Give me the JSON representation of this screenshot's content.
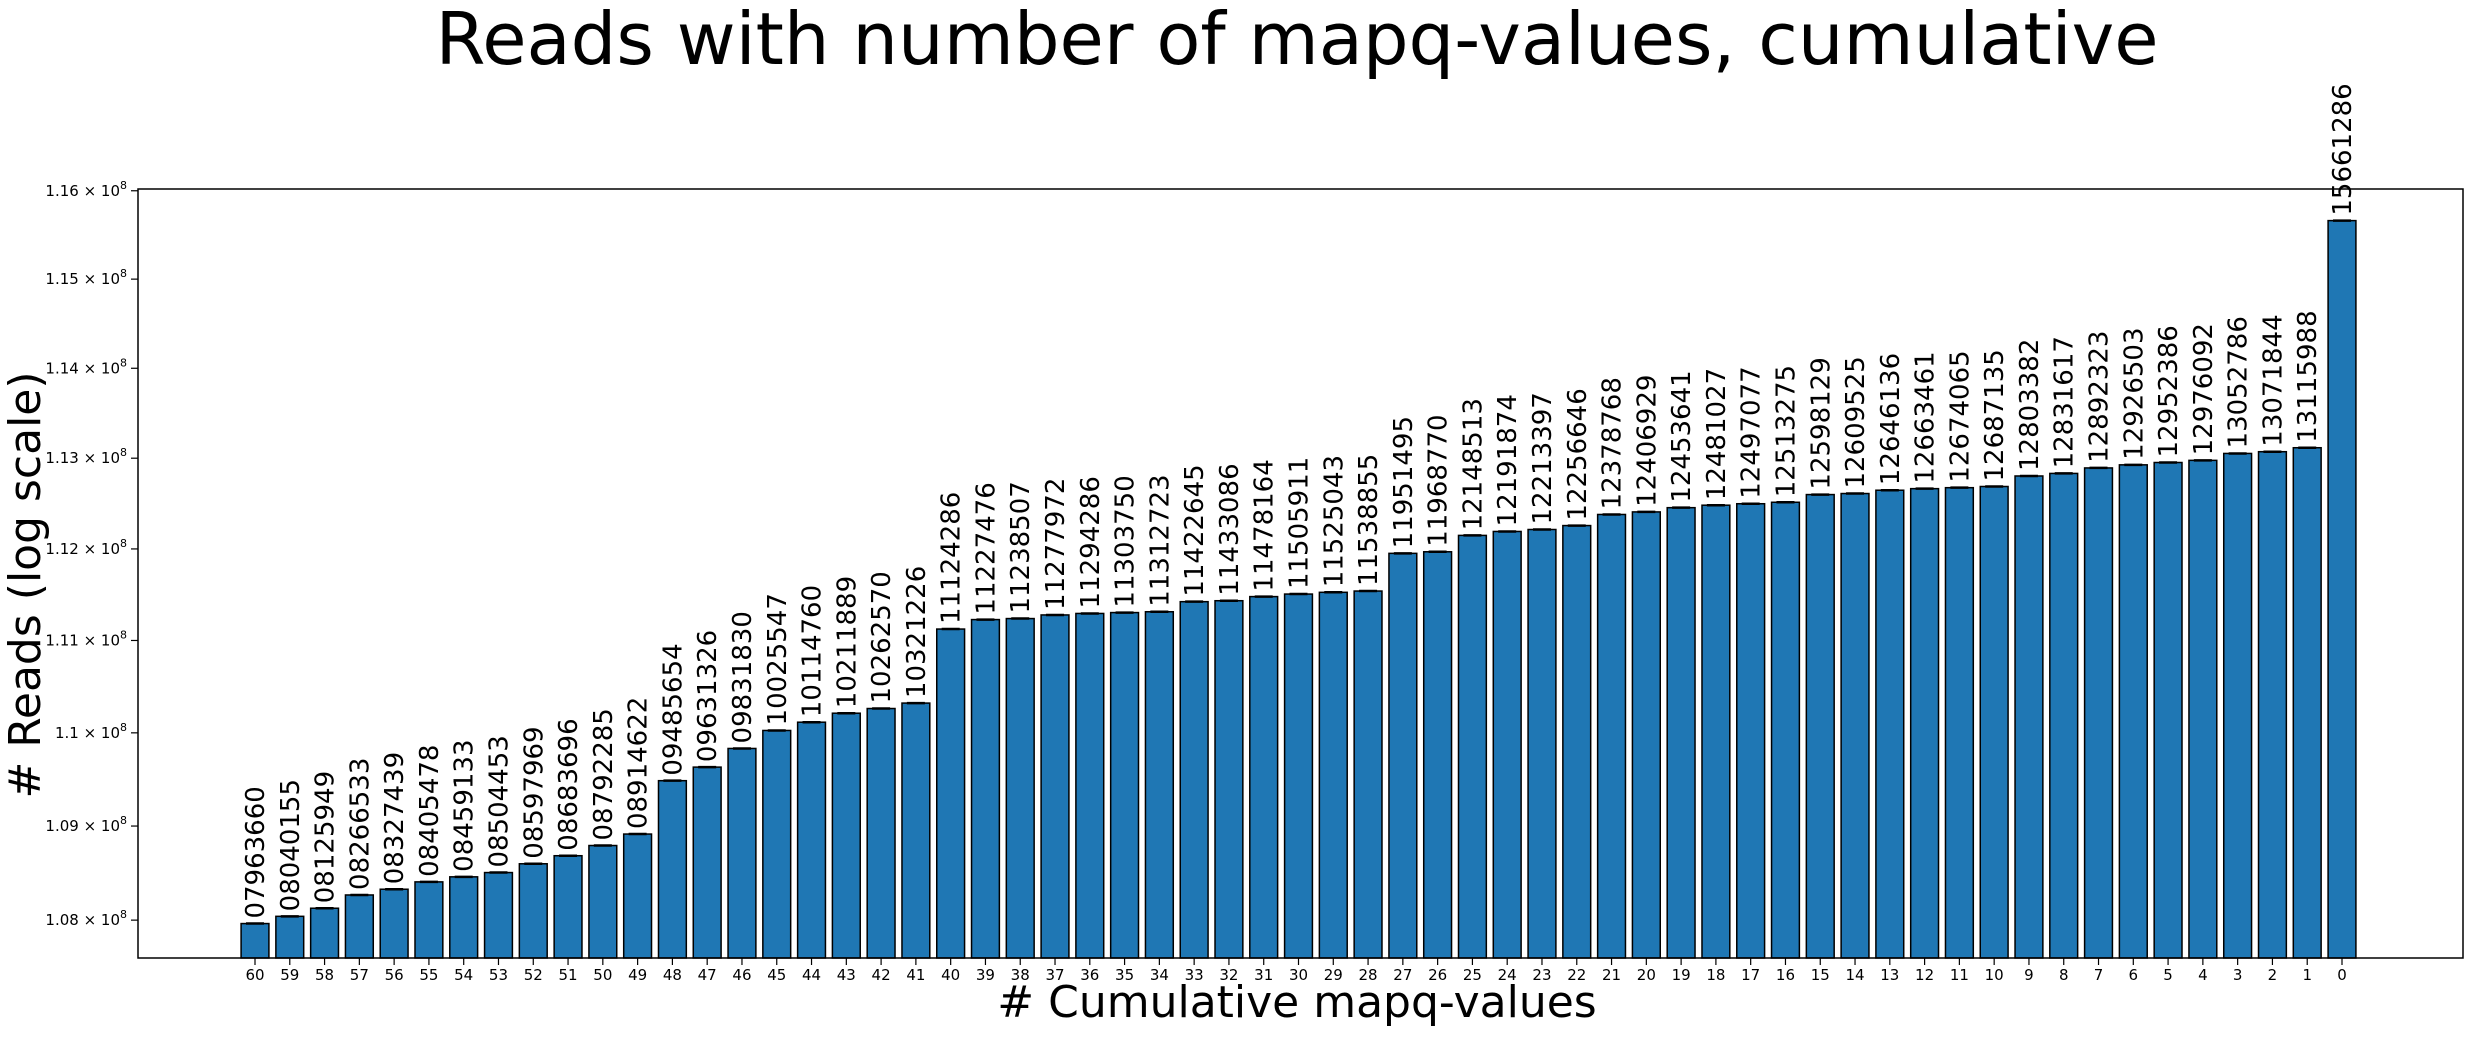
{
  "chart_data": {
    "type": "bar",
    "title": "Reads with number of mapq-values, cumulative",
    "xlabel": "# Cumulative mapq-values",
    "ylabel": "# Reads (log scale)",
    "yscale": "log",
    "ylim": [
      107600000,
      116020000
    ],
    "bar_color": "#1f77b4",
    "edge_color": "#000000",
    "grid": false,
    "legend": "none",
    "yticks": [
      108000000,
      109000000,
      110000000,
      111000000,
      112000000,
      113000000,
      114000000,
      115000000,
      116000000
    ],
    "ytick_labels": [
      {
        "mant": "1.08",
        "exp": "8"
      },
      {
        "mant": "1.09",
        "exp": "8"
      },
      {
        "mant": "1.1",
        "exp": "8"
      },
      {
        "mant": "1.11",
        "exp": "8"
      },
      {
        "mant": "1.12",
        "exp": "8"
      },
      {
        "mant": "1.13",
        "exp": "8"
      },
      {
        "mant": "1.14",
        "exp": "8"
      },
      {
        "mant": "1.15",
        "exp": "8"
      },
      {
        "mant": "1.16",
        "exp": "8"
      }
    ],
    "categories": [
      "60",
      "59",
      "58",
      "57",
      "56",
      "55",
      "54",
      "53",
      "52",
      "51",
      "50",
      "49",
      "48",
      "47",
      "46",
      "45",
      "44",
      "43",
      "42",
      "41",
      "40",
      "39",
      "38",
      "37",
      "36",
      "35",
      "34",
      "33",
      "32",
      "31",
      "30",
      "29",
      "28",
      "27",
      "26",
      "25",
      "24",
      "23",
      "22",
      "21",
      "20",
      "19",
      "18",
      "17",
      "16",
      "15",
      "14",
      "13",
      "12",
      "11",
      "10",
      "9",
      "8",
      "7",
      "6",
      "5",
      "4",
      "3",
      "2",
      "1",
      "0"
    ],
    "values": [
      107963660,
      108040155,
      108125949,
      108266533,
      108327439,
      108405478,
      108459133,
      108504453,
      108597969,
      108683696,
      108792285,
      108914622,
      109485654,
      109631326,
      109831830,
      110025547,
      110114760,
      110211889,
      110262570,
      110321226,
      111124286,
      111227476,
      111238507,
      111277972,
      111294286,
      111303750,
      111312723,
      111422645,
      111433086,
      111478164,
      111505911,
      111525043,
      111538855,
      111951495,
      111968770,
      112148513,
      112191874,
      112213397,
      112256646,
      112378768,
      112406929,
      112453641,
      112481027,
      112497077,
      112513275,
      112598129,
      112609525,
      112646136,
      112663461,
      112674065,
      112687135,
      112803382,
      112831617,
      112892323,
      112926503,
      112952386,
      112976092,
      113052786,
      113071844,
      113115988,
      115661286
    ],
    "bar_labels": [
      "07963660",
      "08040155",
      "08125949",
      "08266533",
      "08327439",
      "08405478",
      "08459133",
      "08504453",
      "08597969",
      "08683696",
      "08792285",
      "08914622",
      "09485654",
      "09631326",
      "09831830",
      "10025547",
      "10114760",
      "10211889",
      "10262570",
      "10321226",
      "11124286",
      "11227476",
      "11238507",
      "11277972",
      "11294286",
      "11303750",
      "11312723",
      "11422645",
      "11433086",
      "11478164",
      "11505911",
      "11525043",
      "11538855",
      "11951495",
      "11968770",
      "12148513",
      "12191874",
      "12213397",
      "12256646",
      "12378768",
      "12406929",
      "12453641",
      "12481027",
      "12497077",
      "12513275",
      "12598129",
      "12609525",
      "12646136",
      "12663461",
      "12674065",
      "12687135",
      "12803382",
      "12831617",
      "12892323",
      "12926503",
      "12952386",
      "12976092",
      "13052786",
      "13071844",
      "13115988",
      "15661286"
    ]
  }
}
